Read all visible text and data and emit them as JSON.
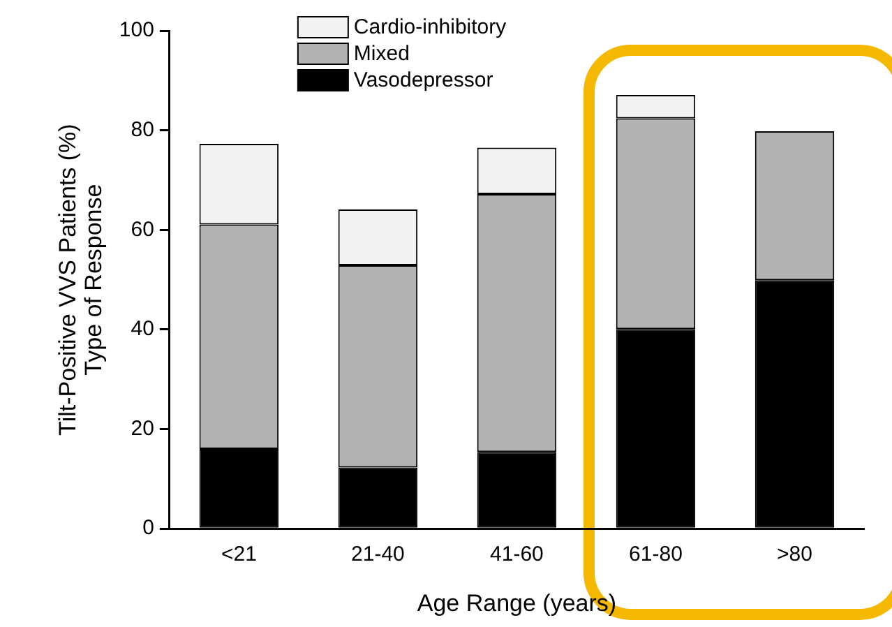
{
  "chart_data": {
    "type": "bar",
    "stacked": true,
    "xlabel": "Age Range (years)",
    "ylabel": "Tilt-Positive VVS Patients (%)\nType of Response",
    "categories": [
      "<21",
      "21-40",
      "41-60",
      "61-80",
      ">80"
    ],
    "series": [
      {
        "name": "Vasodepressor",
        "color": "#000000",
        "values": [
          16,
          12.3,
          15.4,
          40.1,
          49.9
        ]
      },
      {
        "name": "Mixed",
        "color": "#b3b3b3",
        "values": [
          45.1,
          40.6,
          51.8,
          42.3,
          29.9
        ]
      },
      {
        "name": "Cardio-inhibitory",
        "color": "#f2f2f2",
        "values": [
          16.2,
          11.2,
          9.3,
          4.7,
          0
        ]
      }
    ],
    "ylim": [
      0,
      100
    ],
    "yticks": [
      0,
      20,
      40,
      60,
      80,
      100
    ],
    "grid": false,
    "legend": "top left"
  }
}
